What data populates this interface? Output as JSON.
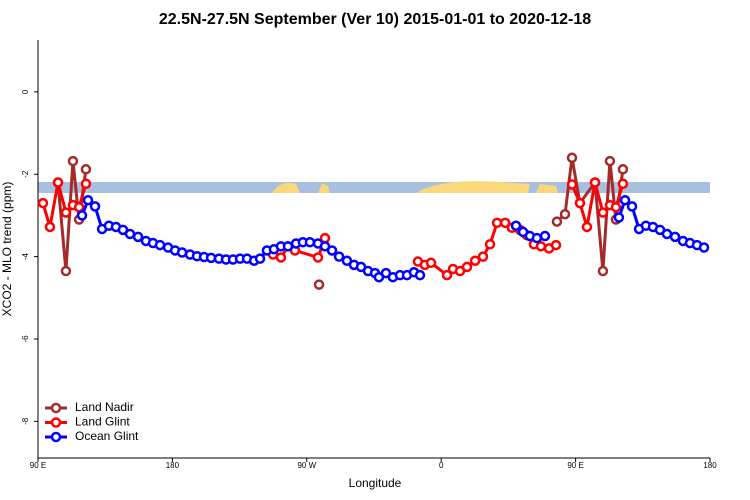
{
  "chart_data": {
    "type": "line",
    "title": "22.5N-27.5N September (Ver 10)   2015-01-01 to 2020-12-18",
    "x_label": "Longitude",
    "y_label": "XCO2 - MLO trend (ppm)",
    "xlim": [
      90,
      540
    ],
    "ylim": [
      -8.89,
      1.26
    ],
    "xticks": [
      {
        "value": 90,
        "label": "90 E"
      },
      180,
      {
        "value": 270,
        "label": "90 W"
      },
      {
        "value": 360,
        "label": "0"
      },
      {
        "value": 450,
        "label": "90 E"
      },
      {
        "value": 540,
        "label": "180"
      }
    ],
    "yticks": [
      -8,
      -6,
      -4,
      -2,
      0
    ],
    "legend": "bottom-left",
    "series": [
      {
        "name": "Land Nadir",
        "color": "#a52a2a",
        "x": [
          103.4,
          108.7,
          113.4,
          117.5,
          122.1,
          null,
          278.2,
          null,
          437.5,
          442.9,
          447.6,
          452.9,
          463.0,
          468.3,
          473.0,
          477.0,
          481.7
        ],
        "values": [
          -2.2,
          -4.35,
          -1.68,
          -3.1,
          -1.88,
          null,
          -4.68,
          null,
          -3.15,
          -2.97,
          -1.6,
          -2.7,
          -2.2,
          -4.35,
          -1.68,
          -3.1,
          -1.88
        ]
      },
      {
        "name": "Land Glint",
        "color": "#ff0000",
        "x": [
          93.3,
          98.0,
          103.4,
          108.7,
          113.4,
          117.5,
          122.1,
          null,
          247.4,
          252.7,
          257.4,
          262.1,
          277.5,
          282.2,
          null,
          344.4,
          349.1,
          353.2,
          363.9,
          367.9,
          372.6,
          377.3,
          382.7,
          388.0,
          392.7,
          397.4,
          402.8,
          407.4,
          412.8,
          417.4,
          422.1,
          426.8,
          432.2,
          436.9,
          null,
          447.6,
          452.9,
          457.6,
          463.0,
          468.3,
          473.0,
          477.0,
          481.7
        ],
        "values": [
          -2.7,
          -3.28,
          -2.2,
          -2.93,
          -2.75,
          -2.8,
          -2.23,
          null,
          -3.95,
          -4.02,
          -3.75,
          -3.85,
          -4.02,
          -3.55,
          null,
          -4.12,
          -4.2,
          -4.15,
          -4.45,
          -4.3,
          -4.35,
          -4.25,
          -4.1,
          -4.0,
          -3.7,
          -3.18,
          -3.18,
          -3.3,
          -3.35,
          -3.48,
          -3.7,
          -3.75,
          -3.8,
          -3.72,
          null,
          -2.25,
          -2.7,
          -3.28,
          -2.2,
          -2.93,
          -2.75,
          -2.8,
          -2.23
        ]
      },
      {
        "name": "Ocean Glint",
        "color": "#0000ff",
        "x": [
          119.5,
          123.5,
          128.2,
          132.9,
          137.5,
          142.2,
          146.9,
          151.6,
          157.0,
          162.3,
          167.0,
          171.7,
          177.1,
          181.8,
          186.5,
          191.8,
          196.5,
          201.2,
          205.9,
          211.2,
          215.9,
          220.6,
          225.3,
          230.0,
          234.7,
          238.7,
          243.3,
          248.0,
          252.7,
          257.4,
          262.8,
          267.4,
          272.1,
          277.5,
          282.2,
          286.9,
          291.6,
          296.9,
          301.6,
          306.3,
          311.0,
          315.7,
          318.3,
          323.0,
          327.7,
          332.4,
          337.1,
          341.8,
          345.8,
          null,
          410.1,
          414.8,
          419.4,
          424.1,
          429.5,
          null,
          479.0,
          483.1,
          487.8,
          492.5,
          497.1,
          501.8,
          506.5,
          511.2,
          516.6,
          521.9,
          526.6,
          531.3,
          536.0
        ],
        "values": [
          -3.0,
          -2.63,
          -2.78,
          -3.33,
          -3.25,
          -3.28,
          -3.35,
          -3.45,
          -3.52,
          -3.62,
          -3.67,
          -3.72,
          -3.78,
          -3.85,
          -3.9,
          -3.95,
          -3.99,
          -4.01,
          -4.03,
          -4.05,
          -4.07,
          -4.07,
          -4.05,
          -4.05,
          -4.1,
          -4.05,
          -3.85,
          -3.82,
          -3.75,
          -3.75,
          -3.68,
          -3.65,
          -3.65,
          -3.68,
          -3.75,
          -3.85,
          -4.0,
          -4.1,
          -4.2,
          -4.25,
          -4.35,
          -4.4,
          -4.5,
          -4.4,
          -4.5,
          -4.45,
          -4.45,
          -4.38,
          -4.45,
          null,
          -3.25,
          -3.4,
          -3.5,
          -3.55,
          -3.5,
          null,
          -3.05,
          -2.63,
          -2.78,
          -3.33,
          -3.25,
          -3.28,
          -3.35,
          -3.45,
          -3.52,
          -3.62,
          -3.67,
          -3.72,
          -3.78
        ]
      }
    ]
  }
}
